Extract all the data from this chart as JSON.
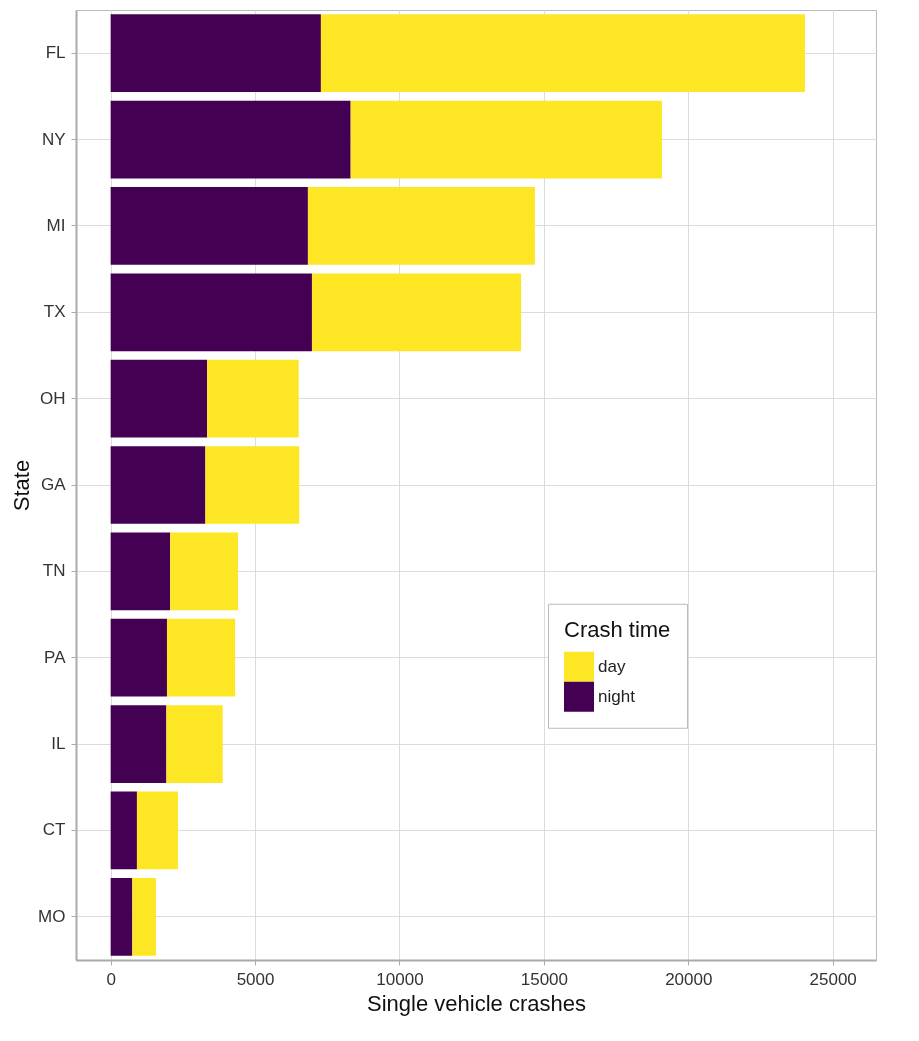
{
  "chart_data": {
    "type": "bar",
    "orientation": "horizontal",
    "stacked": true,
    "xlabel": "Single vehicle crashes",
    "ylabel": "State",
    "legend_title": "Crash time",
    "categories": [
      "FL",
      "NY",
      "MI",
      "TX",
      "OH",
      "GA",
      "TN",
      "PA",
      "IL",
      "CT",
      "MO"
    ],
    "series": [
      {
        "name": "night",
        "color": "#440154",
        "values": [
          7280,
          8310,
          6830,
          6970,
          3340,
          3280,
          2060,
          1950,
          1930,
          910,
          750
        ]
      },
      {
        "name": "day",
        "color": "#fde725",
        "values": [
          16760,
          10780,
          7860,
          7240,
          3170,
          3250,
          2350,
          2360,
          1950,
          1420,
          820
        ]
      }
    ],
    "xlim": [
      -1200,
      26500
    ],
    "xticks": [
      0,
      5000,
      10000,
      15000,
      20000,
      25000
    ],
    "grid": true,
    "legend": "right"
  }
}
